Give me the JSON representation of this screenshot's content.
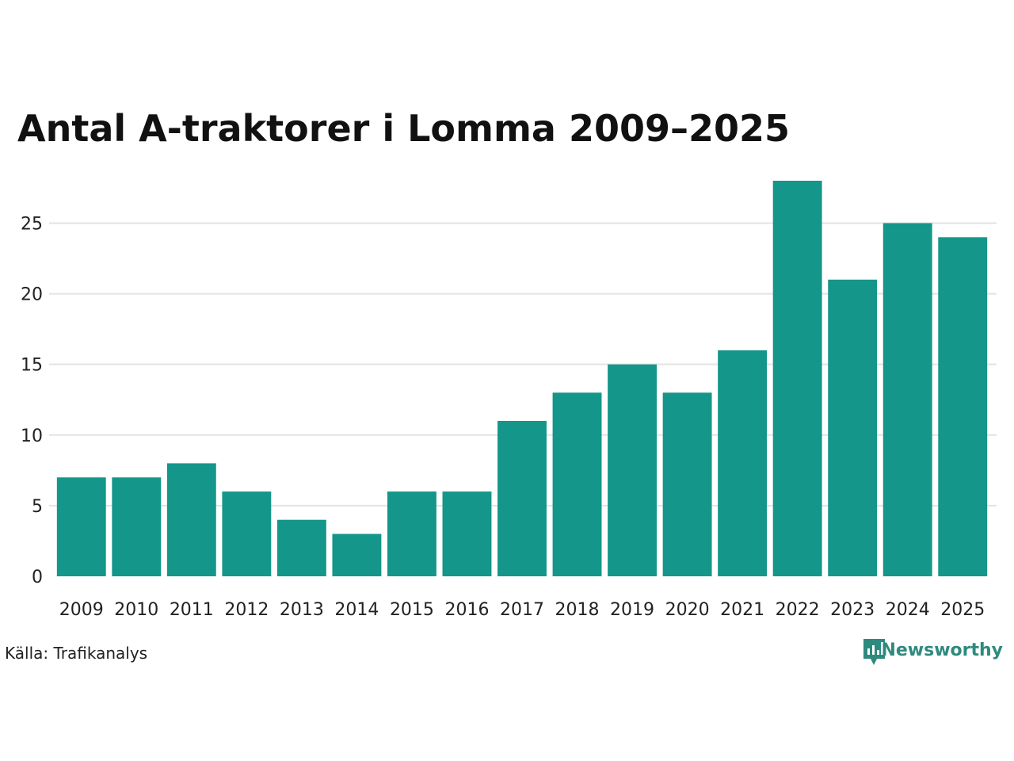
{
  "chart_data": {
    "type": "bar",
    "title": "Antal A-traktorer i Lomma 2009–2025",
    "xlabel": "",
    "ylabel": "",
    "categories": [
      "2009",
      "2010",
      "2011",
      "2012",
      "2013",
      "2014",
      "2015",
      "2016",
      "2017",
      "2018",
      "2019",
      "2020",
      "2021",
      "2022",
      "2023",
      "2024",
      "2025"
    ],
    "values": [
      7,
      7,
      8,
      6,
      4,
      3,
      6,
      6,
      11,
      13,
      15,
      13,
      16,
      28,
      21,
      25,
      24
    ],
    "ylim": [
      0,
      28
    ],
    "yticks": [
      0,
      5,
      10,
      15,
      20,
      25
    ],
    "grid": true,
    "bar_color": "#14968a"
  },
  "source": "Källa: Trafikanalys",
  "brand": {
    "name": "Newsworthy",
    "color": "#2e8a7e",
    "icon": "newsworthy-logo-icon"
  }
}
